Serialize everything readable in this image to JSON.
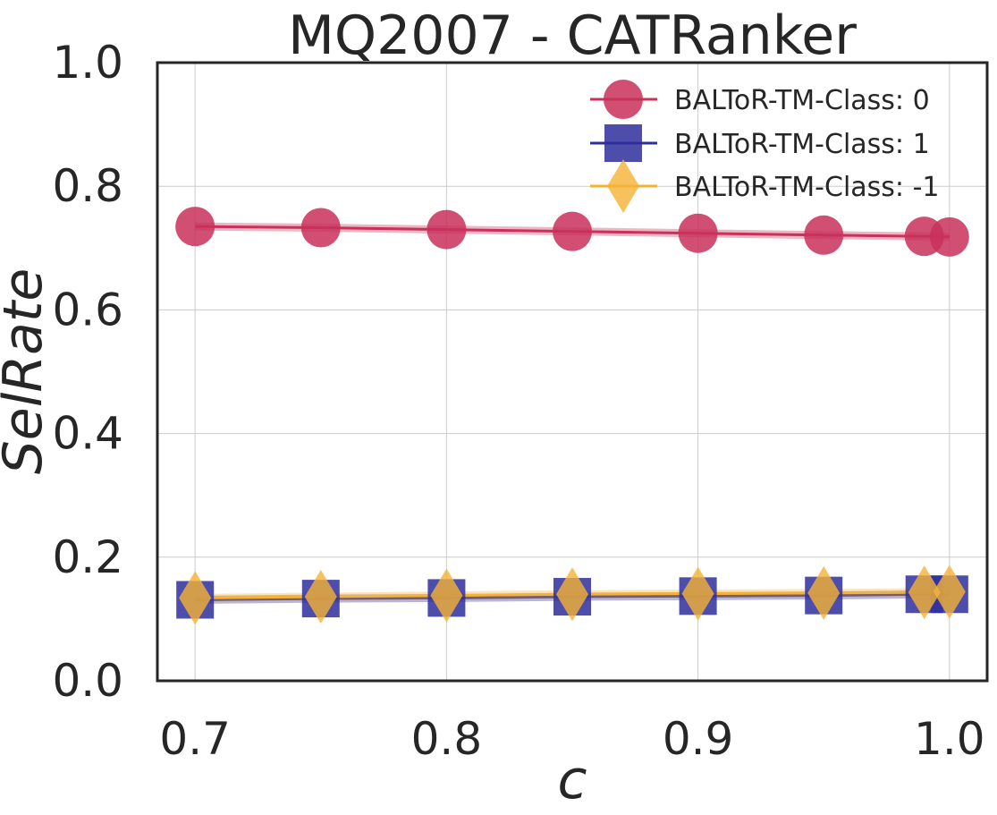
{
  "chart_data": {
    "type": "line",
    "title": "MQ2007 - CATRanker",
    "xlabel": "c",
    "ylabel": "SelRate",
    "xlim": [
      0.685,
      1.015
    ],
    "ylim": [
      0.0,
      1.0
    ],
    "xticks": [
      0.7,
      0.8,
      0.9,
      1.0
    ],
    "xtick_labels": [
      "0.7",
      "0.8",
      "0.9",
      "1.0"
    ],
    "yticks": [
      0.0,
      0.2,
      0.4,
      0.6,
      0.8,
      1.0
    ],
    "ytick_labels": [
      "0.0",
      "0.2",
      "0.4",
      "0.6",
      "0.8",
      "1.0"
    ],
    "grid": true,
    "legend_position": "top-right",
    "x": [
      0.7,
      0.75,
      0.8,
      0.85,
      0.9,
      0.95,
      0.99,
      1.0
    ],
    "series": [
      {
        "name": "BALToR-TM-Class: 0",
        "marker": "circle",
        "color": "#c9305a",
        "values": [
          0.735,
          0.733,
          0.73,
          0.727,
          0.724,
          0.721,
          0.719,
          0.718
        ]
      },
      {
        "name": "BALToR-TM-Class: 1",
        "marker": "square",
        "color": "#2e2e9e",
        "values": [
          0.131,
          0.133,
          0.134,
          0.136,
          0.137,
          0.138,
          0.14,
          0.14
        ]
      },
      {
        "name": "BALToR-TM-Class: -1",
        "marker": "diamond",
        "color": "#f5b335",
        "values": [
          0.134,
          0.136,
          0.138,
          0.14,
          0.141,
          0.142,
          0.143,
          0.144
        ]
      }
    ]
  }
}
